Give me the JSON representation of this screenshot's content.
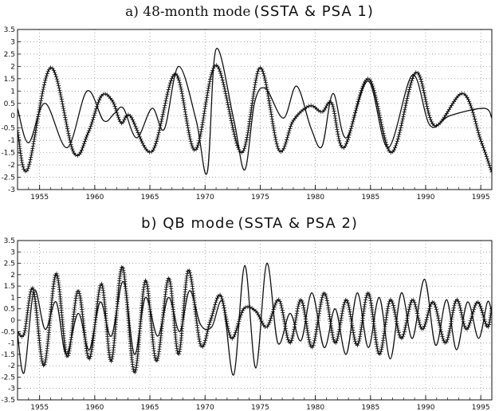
{
  "chart_data": [
    {
      "type": "line",
      "title": "a) 48-month mode",
      "subtitle": "(SSTA & PSA 1)",
      "xlabel": "",
      "ylabel": "",
      "xlim": [
        1953,
        1996
      ],
      "ylim": [
        -3,
        3.5
      ],
      "x_ticks": [
        "1955",
        "1960",
        "1965",
        "1970",
        "1975",
        "1980",
        "1985",
        "1990",
        "1995"
      ],
      "y_ticks": [
        "3.5",
        "3",
        "2.5",
        "2",
        "1.5",
        "1",
        "0.5",
        "0",
        "-0.5",
        "-1",
        "-1.5",
        "-2",
        "-2.5",
        "-3"
      ],
      "grid": true,
      "series": [
        {
          "marker": "plus",
          "x": [
            1953.0,
            1953.9,
            1956.0,
            1958.1,
            1959.4,
            1960.6,
            1961.6,
            1962.4,
            1963.2,
            1965.2,
            1967.3,
            1969.1,
            1971.0,
            1973.3,
            1975.0,
            1976.7,
            1978.0,
            1979.5,
            1980.6,
            1981.5,
            1982.6,
            1984.8,
            1986.9,
            1989.1,
            1990.8,
            1993.4,
            1995.0,
            1996.0
          ],
          "y": [
            -0.6,
            -2.2,
            1.95,
            -1.5,
            -0.7,
            0.8,
            0.6,
            -0.3,
            0.0,
            -1.45,
            1.7,
            -1.4,
            2.05,
            -1.5,
            1.95,
            -1.4,
            -0.2,
            0.4,
            0.15,
            0.5,
            -1.3,
            1.5,
            -1.5,
            1.75,
            -0.4,
            0.9,
            -1.0,
            -2.3
          ]
        },
        {
          "marker": "none",
          "x": [
            1953.0,
            1954.0,
            1955.5,
            1957.5,
            1959.3,
            1960.8,
            1961.8,
            1962.6,
            1963.8,
            1965.2,
            1966.3,
            1967.6,
            1969.2,
            1970.2,
            1971.0,
            1972.6,
            1973.6,
            1974.5,
            1975.5,
            1977.1,
            1978.3,
            1979.6,
            1980.6,
            1981.6,
            1982.8,
            1984.8,
            1986.6,
            1988.8,
            1990.4,
            1992.2,
            1995.3,
            1996.0
          ],
          "y": [
            0.3,
            -1.1,
            0.5,
            -1.3,
            1.0,
            -0.2,
            0.1,
            0.3,
            -0.9,
            0.3,
            -0.55,
            2.0,
            -0.2,
            -2.3,
            2.7,
            -0.15,
            -2.2,
            0.55,
            1.1,
            -0.1,
            1.2,
            -0.5,
            -1.25,
            0.9,
            -0.9,
            1.4,
            -1.3,
            1.65,
            -0.4,
            0.0,
            0.3,
            -0.1
          ]
        }
      ]
    },
    {
      "type": "line",
      "title": "b) QB mode",
      "subtitle": "(SSTA & PSA 2)",
      "xlabel": "",
      "ylabel": "",
      "xlim": [
        1953,
        1996
      ],
      "ylim": [
        -3.5,
        3.5
      ],
      "x_ticks": [
        "1955",
        "1960",
        "1965",
        "1970",
        "1975",
        "1980",
        "1985",
        "1990",
        "1995"
      ],
      "y_ticks": [
        "3.5",
        "3",
        "2.5",
        "2",
        "1.5",
        "1",
        "0.5",
        "0",
        "-0.5",
        "-1",
        "-1.5",
        "-2",
        "-2.5",
        "-3",
        "-3.5"
      ],
      "grid": true,
      "series": [
        {
          "marker": "plus",
          "x": [
            1953.0,
            1953.6,
            1954.4,
            1955.4,
            1956.5,
            1957.5,
            1958.5,
            1959.5,
            1960.6,
            1961.5,
            1962.5,
            1963.6,
            1964.6,
            1965.6,
            1966.7,
            1967.6,
            1968.5,
            1969.6,
            1970.5,
            1971.4,
            1972.4,
            1973.5,
            1974.6,
            1975.6,
            1976.7,
            1977.7,
            1978.7,
            1979.7,
            1980.8,
            1981.8,
            1982.8,
            1983.8,
            1984.8,
            1985.8,
            1986.8,
            1987.8,
            1988.8,
            1989.7,
            1990.7,
            1991.8,
            1992.8,
            1993.7,
            1994.7,
            1995.6,
            1996.0
          ],
          "y": [
            -0.5,
            -0.6,
            1.4,
            -2.0,
            2.05,
            -1.6,
            1.3,
            -1.7,
            1.6,
            -1.8,
            2.35,
            -2.3,
            1.75,
            -1.8,
            1.85,
            -1.5,
            2.2,
            -1.1,
            0.0,
            1.1,
            -0.8,
            0.5,
            0.4,
            -0.3,
            0.9,
            -1.0,
            0.9,
            -1.2,
            1.2,
            -1.0,
            0.9,
            -1.1,
            1.2,
            -1.5,
            0.9,
            -0.8,
            0.9,
            -0.4,
            0.8,
            -1.0,
            0.9,
            -0.4,
            0.8,
            -0.3,
            0.6
          ]
        },
        {
          "marker": "none",
          "x": [
            1953.0,
            1953.6,
            1954.5,
            1955.5,
            1956.5,
            1957.4,
            1958.5,
            1959.5,
            1960.5,
            1961.5,
            1962.6,
            1963.6,
            1964.6,
            1965.7,
            1966.7,
            1967.7,
            1968.6,
            1969.6,
            1970.6,
            1971.6,
            1972.6,
            1973.6,
            1974.6,
            1975.6,
            1976.6,
            1977.7,
            1978.7,
            1979.7,
            1980.8,
            1981.8,
            1982.8,
            1983.8,
            1984.8,
            1985.8,
            1986.8,
            1987.8,
            1988.8,
            1989.9,
            1990.9,
            1991.9,
            1992.8,
            1993.8,
            1994.8,
            1995.6,
            1996.0
          ],
          "y": [
            -0.6,
            -2.3,
            1.3,
            -0.4,
            0.8,
            -1.5,
            0.3,
            -1.3,
            0.8,
            -0.7,
            1.7,
            -1.5,
            1.0,
            -0.7,
            1.0,
            -0.5,
            1.3,
            -0.2,
            -0.3,
            0.8,
            -2.4,
            2.4,
            -2.1,
            2.5,
            -1.0,
            0.3,
            -0.9,
            1.2,
            -1.2,
            0.5,
            -1.5,
            1.2,
            -1.2,
            1.0,
            -1.7,
            1.2,
            -0.8,
            1.8,
            -1.1,
            0.9,
            -1.3,
            0.8,
            -0.8,
            0.8,
            0.3
          ]
        }
      ]
    }
  ]
}
